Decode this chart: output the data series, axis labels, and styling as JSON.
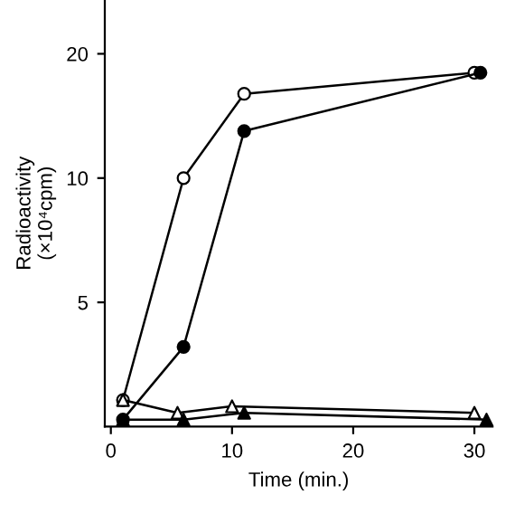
{
  "chart_data": {
    "type": "line",
    "xlabel": "Time (min.)",
    "ylabel": "Radioactivity\n(×10⁴cpm)",
    "xlim": [
      -0.5,
      31.5
    ],
    "xticks": [
      0,
      10,
      20,
      30
    ],
    "log": "y",
    "ylim": [
      2.5,
      27
    ],
    "yticks": [
      5,
      10,
      20
    ],
    "grid": false,
    "legend": false,
    "line_style": "solid",
    "series": [
      {
        "color": "#000000",
        "marker": "circle",
        "colors": [
          "#ffffff",
          "#ffffff",
          "#ffffff",
          "#ffffff"
        ],
        "x": [
          1,
          6,
          11,
          30
        ],
        "values": [
          2.9,
          10,
          16,
          18
        ]
      },
      {
        "color": "#000000",
        "marker": "circle",
        "colors": [
          "#000000",
          "#000000",
          "#000000",
          "#000000"
        ],
        "x": [
          1,
          6,
          11,
          30.5
        ],
        "values": [
          2.6,
          3.9,
          13,
          18
        ]
      },
      {
        "color": "#000000",
        "marker": "triangle",
        "colors": [
          "#ffffff",
          "#ffffff",
          "#ffffff",
          "#ffffff"
        ],
        "x": [
          1,
          5.5,
          10,
          30
        ],
        "values": [
          2.9,
          2.7,
          2.8,
          2.7
        ]
      },
      {
        "color": "#000000",
        "marker": "triangle",
        "colors": [
          "#000000",
          "#000000",
          "#000000",
          "#000000"
        ],
        "x": [
          1,
          6,
          11,
          31
        ],
        "values": [
          2.6,
          2.6,
          2.7,
          2.6
        ]
      }
    ]
  }
}
